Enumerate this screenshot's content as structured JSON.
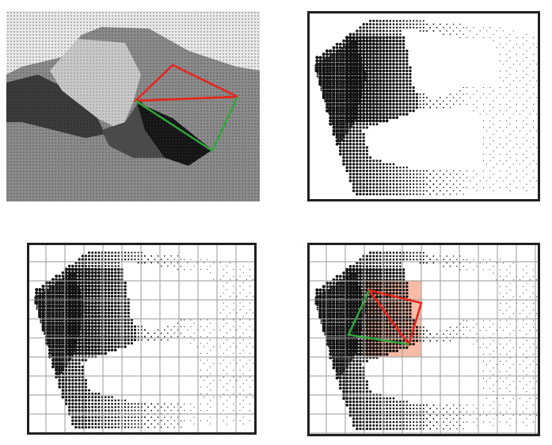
{
  "figure": {
    "panels": [
      {
        "id": "depth-image",
        "kind": "shaded-depth-image",
        "overlay": [
          "red-triangles",
          "green-edge"
        ]
      },
      {
        "id": "point-cloud",
        "kind": "point-cloud-projection",
        "framed": true
      },
      {
        "id": "point-cloud-grid",
        "kind": "point-cloud-projection-with-grid",
        "framed": true,
        "grid": true
      },
      {
        "id": "point-cloud-grid-overlay",
        "kind": "point-cloud-projection-with-grid",
        "framed": true,
        "grid": true,
        "overlay": [
          "red-triangles",
          "green-edge",
          "highlighted-cell-region"
        ]
      }
    ],
    "colors": {
      "triangle": "#e8241b",
      "edge": "#2ea83a",
      "highlight": "#f4a58a",
      "frame": "#231f20",
      "grid": "#9a9a9a",
      "point": "#111111"
    }
  }
}
